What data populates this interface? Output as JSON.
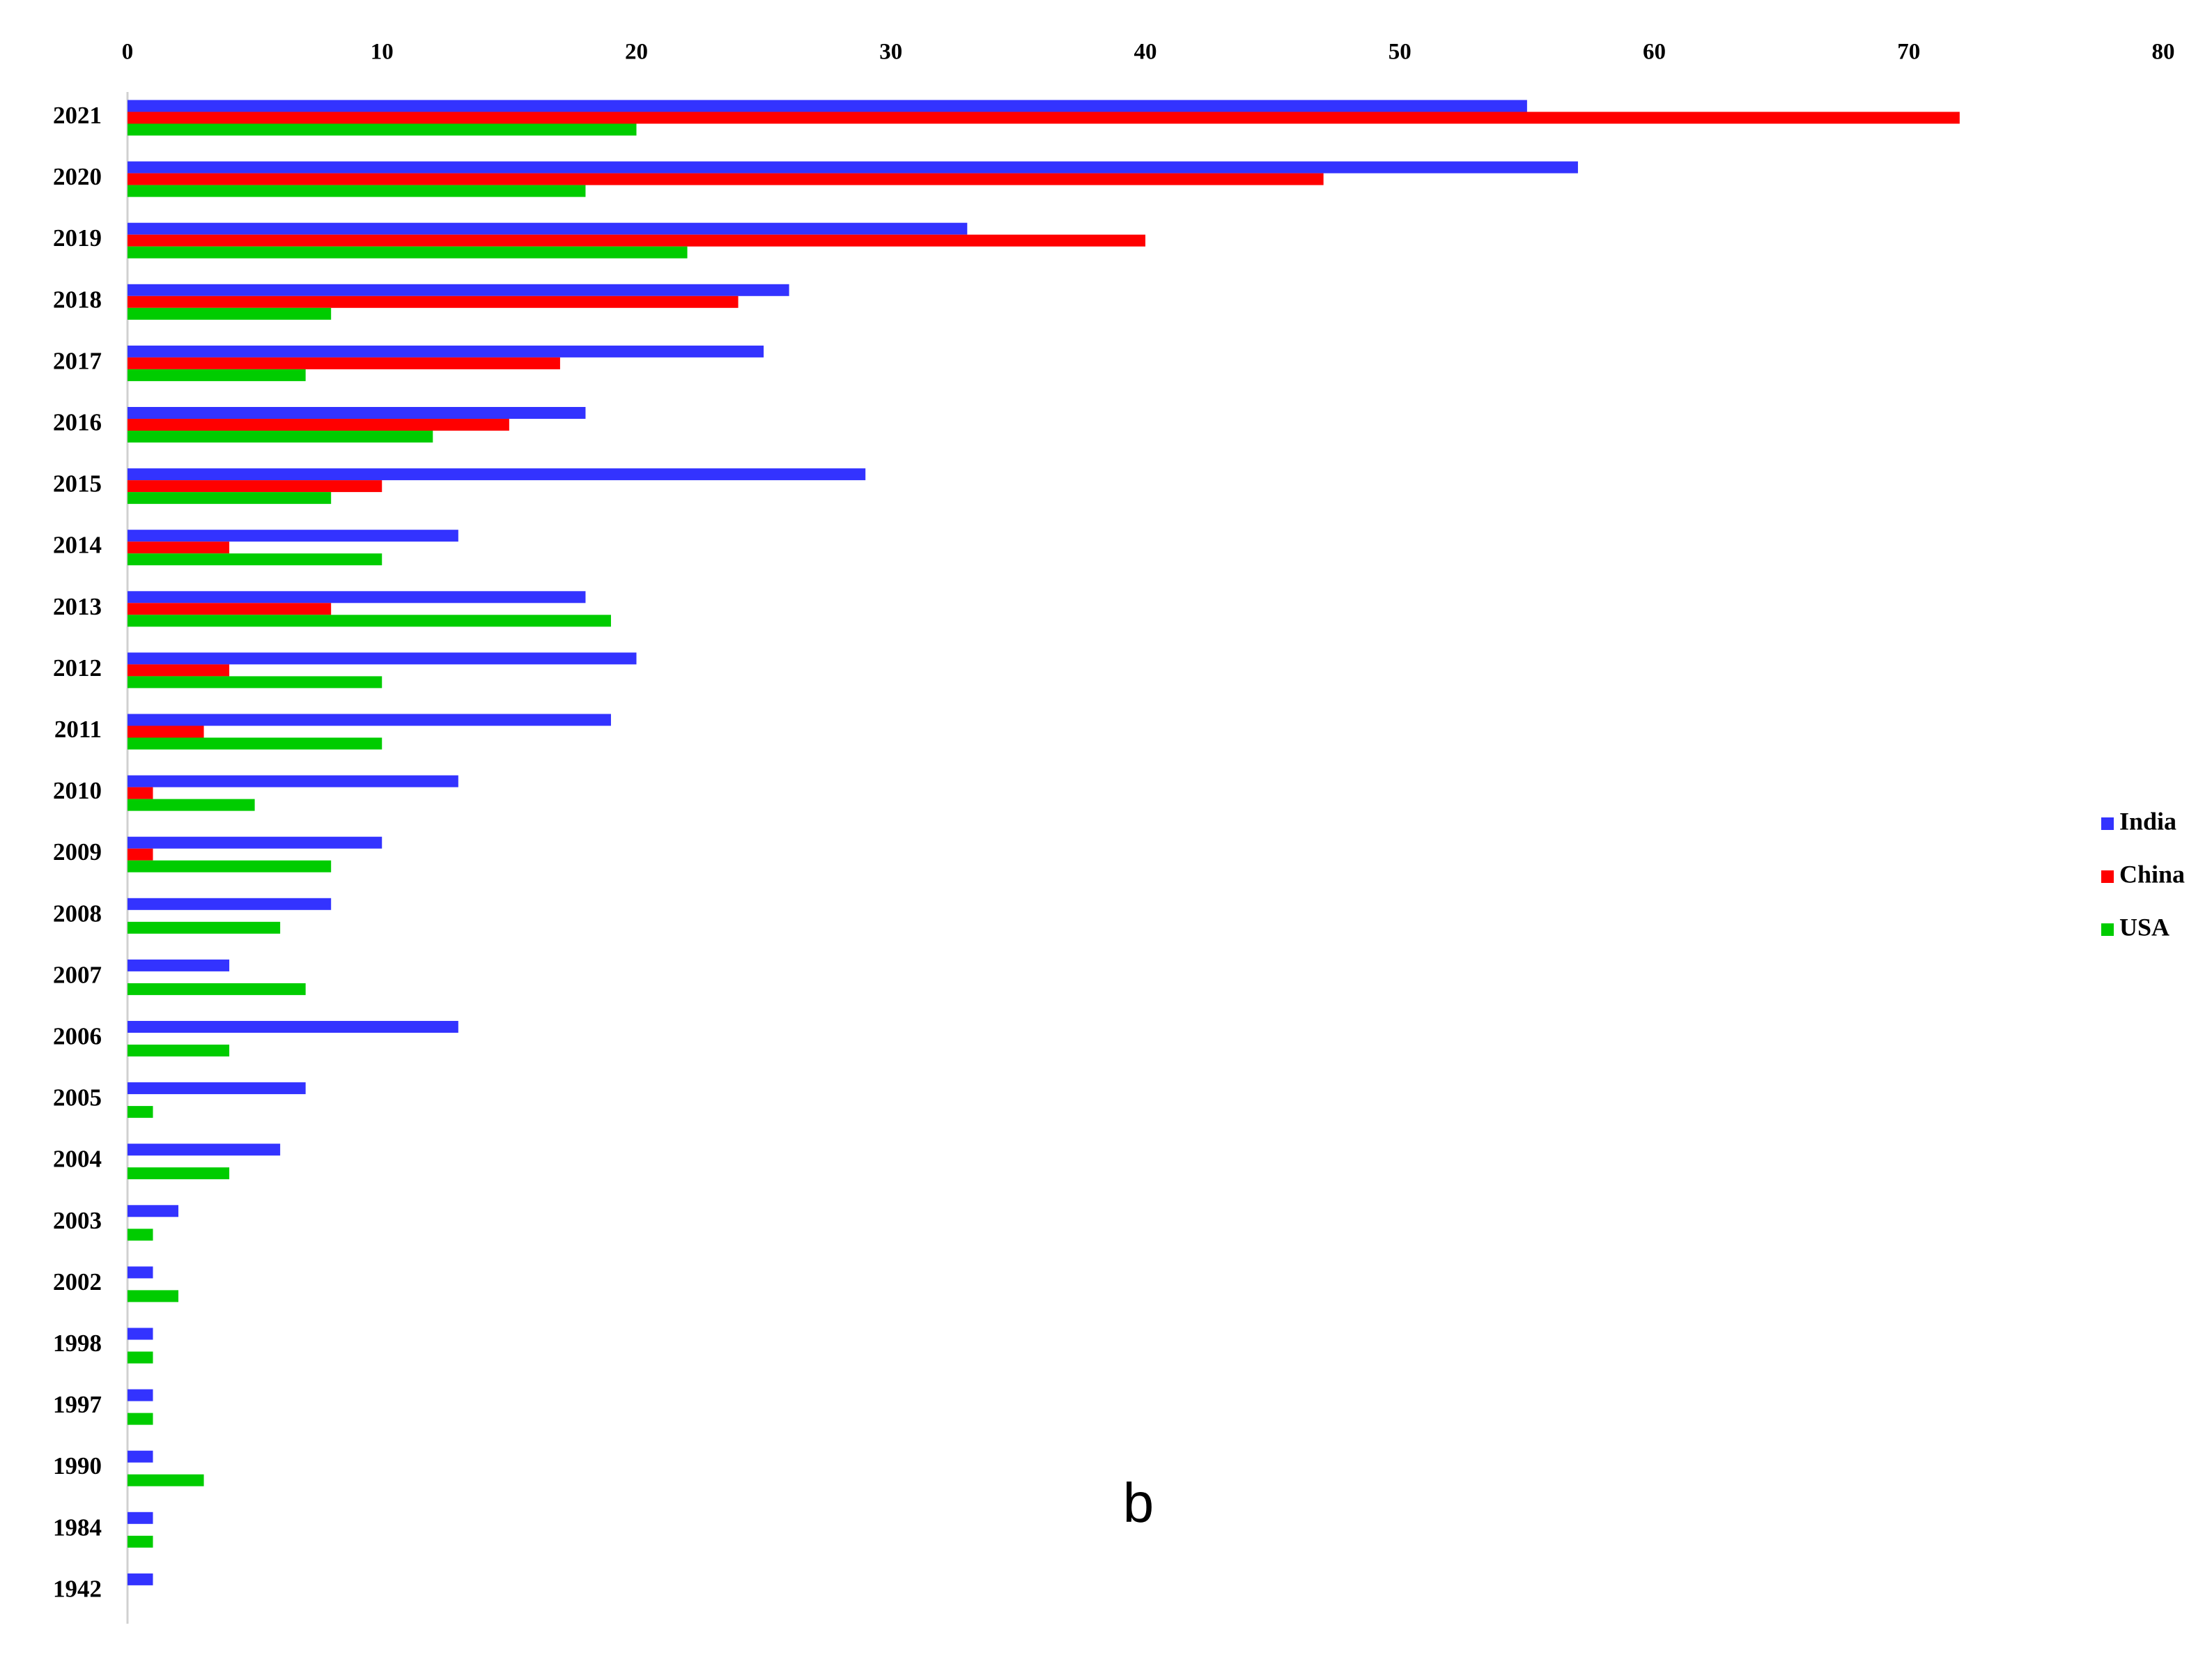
{
  "chart_data": {
    "type": "bar",
    "orientation": "horizontal",
    "categories": [
      "2021",
      "2020",
      "2019",
      "2018",
      "2017",
      "2016",
      "2015",
      "2014",
      "2013",
      "2012",
      "2011",
      "2010",
      "2009",
      "2008",
      "2007",
      "2006",
      "2005",
      "2004",
      "2003",
      "2002",
      "1998",
      "1997",
      "1990",
      "1984",
      "1942"
    ],
    "series": [
      {
        "name": "India",
        "color": "#3333ff",
        "values": [
          55,
          57,
          33,
          26,
          25,
          18,
          29,
          13,
          18,
          20,
          19,
          13,
          10,
          8,
          4,
          13,
          7,
          6,
          2,
          1,
          1,
          1,
          1,
          1,
          1
        ]
      },
      {
        "name": "China",
        "color": "#ff0000",
        "values": [
          72,
          47,
          40,
          24,
          17,
          15,
          10,
          4,
          8,
          4,
          3,
          1,
          1,
          0,
          0,
          0,
          0,
          0,
          0,
          0,
          0,
          0,
          0,
          0,
          0
        ]
      },
      {
        "name": "USA",
        "color": "#00cc00",
        "values": [
          20,
          18,
          22,
          8,
          7,
          12,
          8,
          10,
          19,
          10,
          10,
          5,
          8,
          6,
          7,
          4,
          1,
          4,
          1,
          2,
          1,
          1,
          3,
          1,
          0
        ]
      }
    ],
    "xlim": [
      0,
      80
    ],
    "xticks": [
      0,
      10,
      20,
      30,
      40,
      50,
      60,
      70,
      80
    ],
    "xaxis_position": "top",
    "grid": false,
    "legend": "right",
    "annotation": "b"
  }
}
